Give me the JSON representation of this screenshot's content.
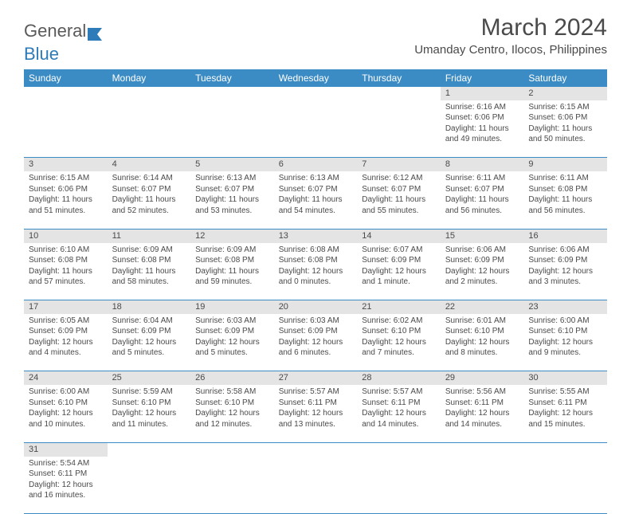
{
  "logo": {
    "general": "General",
    "blue": "Blue"
  },
  "title": "March 2024",
  "location": "Umanday Centro, Ilocos, Philippines",
  "weekdays": [
    "Sunday",
    "Monday",
    "Tuesday",
    "Wednesday",
    "Thursday",
    "Friday",
    "Saturday"
  ],
  "colors": {
    "header_bg": "#3b8bc4",
    "header_text": "#ffffff",
    "daynum_bg": "#e4e4e4",
    "text": "#4a4a4a",
    "rule": "#3b8bc4"
  },
  "fonts": {
    "title_size_pt": 30,
    "location_size_pt": 15,
    "weekday_size_pt": 12,
    "daynum_size_pt": 11,
    "cell_size_pt": 10
  },
  "weeks": [
    [
      null,
      null,
      null,
      null,
      null,
      {
        "n": "1",
        "sr": "Sunrise: 6:16 AM",
        "ss": "Sunset: 6:06 PM",
        "dl": "Daylight: 11 hours and 49 minutes."
      },
      {
        "n": "2",
        "sr": "Sunrise: 6:15 AM",
        "ss": "Sunset: 6:06 PM",
        "dl": "Daylight: 11 hours and 50 minutes."
      }
    ],
    [
      {
        "n": "3",
        "sr": "Sunrise: 6:15 AM",
        "ss": "Sunset: 6:06 PM",
        "dl": "Daylight: 11 hours and 51 minutes."
      },
      {
        "n": "4",
        "sr": "Sunrise: 6:14 AM",
        "ss": "Sunset: 6:07 PM",
        "dl": "Daylight: 11 hours and 52 minutes."
      },
      {
        "n": "5",
        "sr": "Sunrise: 6:13 AM",
        "ss": "Sunset: 6:07 PM",
        "dl": "Daylight: 11 hours and 53 minutes."
      },
      {
        "n": "6",
        "sr": "Sunrise: 6:13 AM",
        "ss": "Sunset: 6:07 PM",
        "dl": "Daylight: 11 hours and 54 minutes."
      },
      {
        "n": "7",
        "sr": "Sunrise: 6:12 AM",
        "ss": "Sunset: 6:07 PM",
        "dl": "Daylight: 11 hours and 55 minutes."
      },
      {
        "n": "8",
        "sr": "Sunrise: 6:11 AM",
        "ss": "Sunset: 6:07 PM",
        "dl": "Daylight: 11 hours and 56 minutes."
      },
      {
        "n": "9",
        "sr": "Sunrise: 6:11 AM",
        "ss": "Sunset: 6:08 PM",
        "dl": "Daylight: 11 hours and 56 minutes."
      }
    ],
    [
      {
        "n": "10",
        "sr": "Sunrise: 6:10 AM",
        "ss": "Sunset: 6:08 PM",
        "dl": "Daylight: 11 hours and 57 minutes."
      },
      {
        "n": "11",
        "sr": "Sunrise: 6:09 AM",
        "ss": "Sunset: 6:08 PM",
        "dl": "Daylight: 11 hours and 58 minutes."
      },
      {
        "n": "12",
        "sr": "Sunrise: 6:09 AM",
        "ss": "Sunset: 6:08 PM",
        "dl": "Daylight: 11 hours and 59 minutes."
      },
      {
        "n": "13",
        "sr": "Sunrise: 6:08 AM",
        "ss": "Sunset: 6:08 PM",
        "dl": "Daylight: 12 hours and 0 minutes."
      },
      {
        "n": "14",
        "sr": "Sunrise: 6:07 AM",
        "ss": "Sunset: 6:09 PM",
        "dl": "Daylight: 12 hours and 1 minute."
      },
      {
        "n": "15",
        "sr": "Sunrise: 6:06 AM",
        "ss": "Sunset: 6:09 PM",
        "dl": "Daylight: 12 hours and 2 minutes."
      },
      {
        "n": "16",
        "sr": "Sunrise: 6:06 AM",
        "ss": "Sunset: 6:09 PM",
        "dl": "Daylight: 12 hours and 3 minutes."
      }
    ],
    [
      {
        "n": "17",
        "sr": "Sunrise: 6:05 AM",
        "ss": "Sunset: 6:09 PM",
        "dl": "Daylight: 12 hours and 4 minutes."
      },
      {
        "n": "18",
        "sr": "Sunrise: 6:04 AM",
        "ss": "Sunset: 6:09 PM",
        "dl": "Daylight: 12 hours and 5 minutes."
      },
      {
        "n": "19",
        "sr": "Sunrise: 6:03 AM",
        "ss": "Sunset: 6:09 PM",
        "dl": "Daylight: 12 hours and 5 minutes."
      },
      {
        "n": "20",
        "sr": "Sunrise: 6:03 AM",
        "ss": "Sunset: 6:09 PM",
        "dl": "Daylight: 12 hours and 6 minutes."
      },
      {
        "n": "21",
        "sr": "Sunrise: 6:02 AM",
        "ss": "Sunset: 6:10 PM",
        "dl": "Daylight: 12 hours and 7 minutes."
      },
      {
        "n": "22",
        "sr": "Sunrise: 6:01 AM",
        "ss": "Sunset: 6:10 PM",
        "dl": "Daylight: 12 hours and 8 minutes."
      },
      {
        "n": "23",
        "sr": "Sunrise: 6:00 AM",
        "ss": "Sunset: 6:10 PM",
        "dl": "Daylight: 12 hours and 9 minutes."
      }
    ],
    [
      {
        "n": "24",
        "sr": "Sunrise: 6:00 AM",
        "ss": "Sunset: 6:10 PM",
        "dl": "Daylight: 12 hours and 10 minutes."
      },
      {
        "n": "25",
        "sr": "Sunrise: 5:59 AM",
        "ss": "Sunset: 6:10 PM",
        "dl": "Daylight: 12 hours and 11 minutes."
      },
      {
        "n": "26",
        "sr": "Sunrise: 5:58 AM",
        "ss": "Sunset: 6:10 PM",
        "dl": "Daylight: 12 hours and 12 minutes."
      },
      {
        "n": "27",
        "sr": "Sunrise: 5:57 AM",
        "ss": "Sunset: 6:11 PM",
        "dl": "Daylight: 12 hours and 13 minutes."
      },
      {
        "n": "28",
        "sr": "Sunrise: 5:57 AM",
        "ss": "Sunset: 6:11 PM",
        "dl": "Daylight: 12 hours and 14 minutes."
      },
      {
        "n": "29",
        "sr": "Sunrise: 5:56 AM",
        "ss": "Sunset: 6:11 PM",
        "dl": "Daylight: 12 hours and 14 minutes."
      },
      {
        "n": "30",
        "sr": "Sunrise: 5:55 AM",
        "ss": "Sunset: 6:11 PM",
        "dl": "Daylight: 12 hours and 15 minutes."
      }
    ],
    [
      {
        "n": "31",
        "sr": "Sunrise: 5:54 AM",
        "ss": "Sunset: 6:11 PM",
        "dl": "Daylight: 12 hours and 16 minutes."
      },
      null,
      null,
      null,
      null,
      null,
      null
    ]
  ]
}
